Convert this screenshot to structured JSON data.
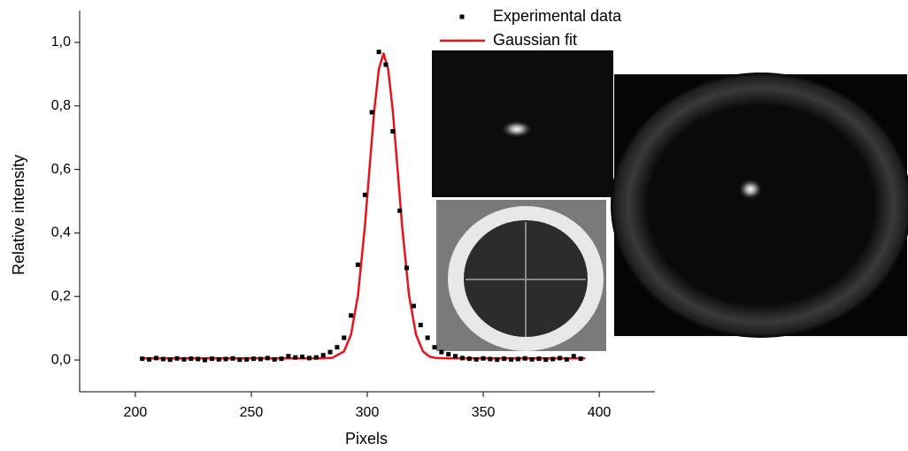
{
  "chart_data": {
    "type": "scatter",
    "xlabel": "Pixels",
    "ylabel": "Relative intensity",
    "xlim": [
      176,
      424
    ],
    "ylim": [
      -0.1,
      1.1
    ],
    "xticks": [
      200,
      250,
      300,
      350,
      400
    ],
    "yticks": [
      {
        "value": 0,
        "label": "0,0"
      },
      {
        "value": 0.2,
        "label": "0,2"
      },
      {
        "value": 0.4,
        "label": "0,4"
      },
      {
        "value": 0.6,
        "label": "0,6"
      },
      {
        "value": 0.8,
        "label": "0,8"
      },
      {
        "value": 1.0,
        "label": "1,0"
      }
    ],
    "grid": false,
    "legend": "top-right",
    "series": [
      {
        "name": "Experimental data",
        "type": "scatter",
        "color": "#000000",
        "x": [
          203,
          206,
          209,
          212,
          215,
          218,
          221,
          224,
          227,
          230,
          233,
          236,
          239,
          242,
          245,
          248,
          251,
          254,
          257,
          260,
          263,
          266,
          269,
          272,
          275,
          278,
          281,
          284,
          287,
          290,
          293,
          296,
          299,
          302,
          305,
          308,
          311,
          314,
          317,
          320,
          323,
          326,
          329,
          332,
          335,
          338,
          341,
          344,
          347,
          350,
          353,
          356,
          359,
          362,
          365,
          368,
          371,
          374,
          377,
          380,
          383,
          386,
          389,
          392
        ],
        "values": [
          0.004,
          0.002,
          0.006,
          0.003,
          0.001,
          0.005,
          0.002,
          0.004,
          0.003,
          0.0,
          0.004,
          0.002,
          0.003,
          0.005,
          0.001,
          0.002,
          0.004,
          0.003,
          0.006,
          0.002,
          0.004,
          0.012,
          0.008,
          0.01,
          0.006,
          0.008,
          0.015,
          0.025,
          0.04,
          0.07,
          0.14,
          0.3,
          0.52,
          0.78,
          0.97,
          0.93,
          0.72,
          0.47,
          0.29,
          0.17,
          0.11,
          0.07,
          0.04,
          0.025,
          0.018,
          0.012,
          0.006,
          0.004,
          0.002,
          0.005,
          0.003,
          0.001,
          0.004,
          0.002,
          0.003,
          0.005,
          0.002,
          0.004,
          0.001,
          0.003,
          0.006,
          0.002,
          0.012,
          0.004
        ]
      },
      {
        "name": "Gaussian fit",
        "type": "line",
        "color": "#e8141c",
        "x": [
          202,
          270,
          280,
          285,
          290,
          293,
          296,
          299,
          301,
          303,
          305,
          307,
          309,
          311,
          313,
          315,
          318,
          321,
          324,
          327,
          330,
          335,
          345,
          394
        ],
        "values": [
          0.005,
          0.005,
          0.005,
          0.007,
          0.027,
          0.08,
          0.204,
          0.423,
          0.606,
          0.785,
          0.916,
          0.965,
          0.916,
          0.785,
          0.606,
          0.423,
          0.204,
          0.08,
          0.027,
          0.01,
          0.006,
          0.005,
          0.005,
          0.005
        ]
      }
    ]
  }
}
